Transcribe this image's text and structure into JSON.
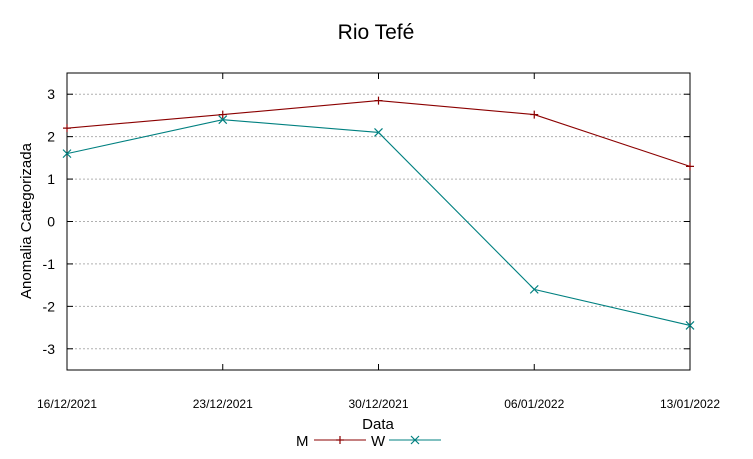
{
  "chart_data": {
    "type": "line",
    "title": "Rio Tefé",
    "xlabel": "Data",
    "ylabel": "Anomalia Categorizada",
    "categories": [
      "16/12/2021",
      "23/12/2021",
      "30/12/2021",
      "06/01/2022",
      "13/01/2022"
    ],
    "ylim": [
      -3.5,
      3.5
    ],
    "yticks": [
      3,
      2,
      1,
      0,
      -1,
      -2,
      -3
    ],
    "ytick_labels": [
      "3",
      "2",
      "1",
      "0",
      "-1",
      "-2",
      "-3"
    ],
    "grid": true,
    "legend_position": "bottom-center",
    "series": [
      {
        "name": "M",
        "marker": "plus",
        "color": "#8b0000",
        "values": [
          2.2,
          2.52,
          2.85,
          2.52,
          1.3
        ]
      },
      {
        "name": "W",
        "marker": "x",
        "color": "#008080",
        "values": [
          1.6,
          2.4,
          2.1,
          -1.6,
          -2.45
        ]
      }
    ]
  }
}
